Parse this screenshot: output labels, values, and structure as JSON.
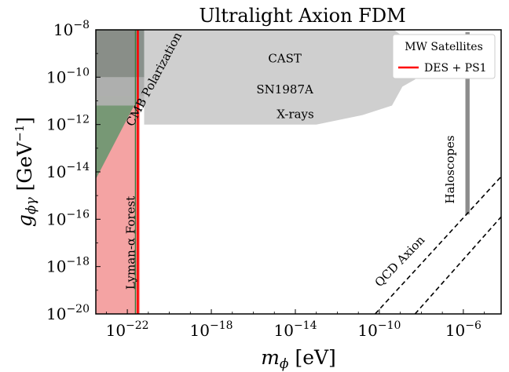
{
  "chart_data": {
    "type": "area",
    "title": "Ultralight Axion FDM",
    "xlabel_base": "m",
    "xlabel_sub": "ϕ",
    "xlabel_unit": " [eV]",
    "ylabel_base": "g",
    "ylabel_sub": "ϕγ",
    "ylabel_unit": " [GeV",
    "ylabel_unit_sup": "−1",
    "ylabel_unit_close": "]",
    "x_scale": "log",
    "y_scale": "log",
    "xlim_log10": [
      -23.5,
      -4.2
    ],
    "ylim_log10": [
      -20,
      -8
    ],
    "x_ticks": [
      {
        "exp": -22,
        "base": "10",
        "sup": "−22"
      },
      {
        "exp": -18,
        "base": "10",
        "sup": "−18"
      },
      {
        "exp": -14,
        "base": "10",
        "sup": "−14"
      },
      {
        "exp": -10,
        "base": "10",
        "sup": "−10"
      },
      {
        "exp": -6,
        "base": "10",
        "sup": "−6"
      }
    ],
    "y_ticks": [
      {
        "exp": -8,
        "base": "10",
        "sup": "−8"
      },
      {
        "exp": -10,
        "base": "10",
        "sup": "−10"
      },
      {
        "exp": -12,
        "base": "10",
        "sup": "−12"
      },
      {
        "exp": -14,
        "base": "10",
        "sup": "−14"
      },
      {
        "exp": -16,
        "base": "10",
        "sup": "−16"
      },
      {
        "exp": -18,
        "base": "10",
        "sup": "−18"
      },
      {
        "exp": -20,
        "base": "10",
        "sup": "−20"
      }
    ],
    "regions": [
      {
        "label": "Lyman-α Forest",
        "color": "#f4a3a3",
        "points_log10": [
          [
            -23.5,
            -8
          ],
          [
            -21.4,
            -8
          ],
          [
            -21.4,
            -20
          ],
          [
            -23.5,
            -20
          ]
        ]
      },
      {
        "label": "CMB Polarization",
        "color": "#4d9466",
        "alpha": 0.75,
        "points_log10": [
          [
            -23.5,
            -8
          ],
          [
            -19.8,
            -8
          ],
          [
            -23.5,
            -14.3
          ]
        ]
      },
      {
        "label": "CAST",
        "color": "#8c8c8c",
        "alpha": 0.85,
        "points_log10": [
          [
            -23.5,
            -8
          ],
          [
            -10.1,
            -8
          ],
          [
            -10.1,
            -10.8
          ],
          [
            -23.5,
            -10.8
          ]
        ]
      },
      {
        "label": "SN1987A",
        "color": "#b3b3b3",
        "alpha": 0.9,
        "points_log10": [
          [
            -23.5,
            -10
          ],
          [
            -10.1,
            -10
          ],
          [
            -10.1,
            -11.2
          ],
          [
            -23.5,
            -11.2
          ]
        ]
      },
      {
        "label": "X-rays",
        "color": "#cfcfcf",
        "points_log10": [
          [
            -21.2,
            -8
          ],
          [
            -9.3,
            -8
          ],
          [
            -8.7,
            -8.4
          ],
          [
            -8.4,
            -9.1
          ],
          [
            -8.1,
            -9.5
          ],
          [
            -8.3,
            -10.1
          ],
          [
            -8.9,
            -10.4
          ],
          [
            -9.4,
            -11.2
          ],
          [
            -10.8,
            -11.6
          ],
          [
            -13.0,
            -12.0
          ],
          [
            -21.2,
            -12.0
          ]
        ]
      },
      {
        "label": "Haloscopes",
        "color": "#8c8c8c",
        "points_log10": [
          [
            -5.9,
            -8.1
          ],
          [
            -5.7,
            -8.1
          ],
          [
            -5.7,
            -15.8
          ],
          [
            -5.9,
            -15.8
          ]
        ]
      }
    ],
    "qcd_band": {
      "label": "QCD Axion",
      "lines_log10": [
        [
          [
            -10.2,
            -20
          ],
          [
            -4.2,
            -14.2
          ]
        ],
        [
          [
            -8.3,
            -20
          ],
          [
            -4.2,
            -15.9
          ]
        ]
      ]
    },
    "des_line": {
      "x_log10": -21.5,
      "label": "DES + PS1"
    },
    "legend": {
      "title": "MW Satellites",
      "entries": [
        "DES + PS1"
      ],
      "position": "top-right",
      "line_color": "#ff0000"
    },
    "labels": [
      {
        "text": "CAST",
        "x_log10": -14.5,
        "y_log10": -9.25
      },
      {
        "text": "SN1987A",
        "x_log10": -14.5,
        "y_log10": -10.55
      },
      {
        "text": "X-rays",
        "x_log10": -14.0,
        "y_log10": -11.6
      },
      {
        "text": "CMB Polarization",
        "x_log10": -20.7,
        "y_log10": -10.1,
        "rotate": -62
      },
      {
        "text": "Lyman-α Forest",
        "x_log10": -21.8,
        "y_log10": -17.0,
        "rotate": -90
      },
      {
        "text": "Haloscopes",
        "x_log10": -6.6,
        "y_log10": -13.9,
        "rotate": -90
      },
      {
        "text": "QCD Axion",
        "x_log10": -9.0,
        "y_log10": -17.8,
        "rotate": -46
      }
    ]
  }
}
